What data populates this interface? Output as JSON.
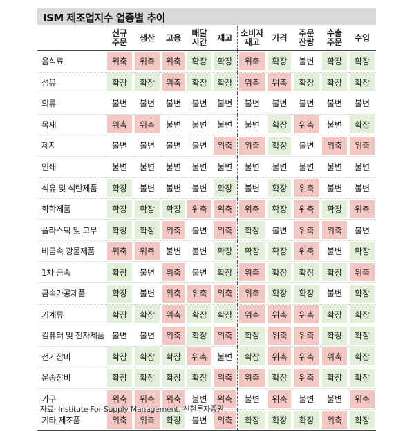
{
  "title": "ISM 제조업지수 업종별 추이",
  "columns": [
    {
      "label": "신규\n주문"
    },
    {
      "label": "생산"
    },
    {
      "label": "고용"
    },
    {
      "label": "배달\n시간"
    },
    {
      "label": "재고"
    },
    {
      "label": "소비자\n재고"
    },
    {
      "label": "가격"
    },
    {
      "label": "주문\n잔량"
    },
    {
      "label": "수출\n주문"
    },
    {
      "label": "수입"
    }
  ],
  "status_colors": {
    "확장": "#e2efd9",
    "위축": "#f4c7c3",
    "불변": "#ffffff"
  },
  "rows": [
    {
      "name": "음식료",
      "values": [
        "위축",
        "위축",
        "위축",
        "확장",
        "확장",
        "위축",
        "확장",
        "불변",
        "확장",
        "확장"
      ]
    },
    {
      "name": "섬유",
      "values": [
        "확장",
        "확장",
        "위축",
        "확장",
        "확장",
        "위축",
        "위축",
        "확장",
        "확장",
        "확장"
      ]
    },
    {
      "name": "의류",
      "values": [
        "불변",
        "불변",
        "불변",
        "불변",
        "불변",
        "불변",
        "불변",
        "불변",
        "불변",
        "불변"
      ]
    },
    {
      "name": "목재",
      "values": [
        "위축",
        "위축",
        "불변",
        "불변",
        "불변",
        "불변",
        "확장",
        "위축",
        "불변",
        "확장"
      ]
    },
    {
      "name": "제지",
      "values": [
        "불변",
        "불변",
        "불변",
        "불변",
        "위축",
        "위축",
        "확장",
        "불변",
        "위축",
        "위축"
      ]
    },
    {
      "name": "인쇄",
      "values": [
        "불변",
        "불변",
        "불변",
        "불변",
        "불변",
        "불변",
        "불변",
        "불변",
        "불변",
        "불변"
      ]
    },
    {
      "name": "석유 및 석탄제품",
      "values": [
        "확장",
        "불변",
        "불변",
        "불변",
        "확장",
        "불변",
        "확장",
        "위축",
        "불변",
        "불변"
      ]
    },
    {
      "name": "화학제품",
      "values": [
        "확장",
        "확장",
        "확장",
        "위축",
        "위축",
        "위축",
        "확장",
        "위축",
        "확장",
        "위축"
      ]
    },
    {
      "name": "플라스틱 및 고무",
      "values": [
        "확장",
        "확장",
        "위축",
        "불변",
        "위축",
        "확장",
        "불변",
        "위축",
        "위축",
        "불변"
      ]
    },
    {
      "name": "비금속 광물제품",
      "values": [
        "위축",
        "위축",
        "불변",
        "불변",
        "확장",
        "확장",
        "확장",
        "위축",
        "불변",
        "확장"
      ]
    },
    {
      "name": "1차 금속",
      "values": [
        "확장",
        "불변",
        "위축",
        "불변",
        "확장",
        "위축",
        "확장",
        "확장",
        "확장",
        "위축"
      ]
    },
    {
      "name": "금속가공제품",
      "values": [
        "확장",
        "불변",
        "위축",
        "위축",
        "위축",
        "위축",
        "확장",
        "확장",
        "불변",
        "확장"
      ]
    },
    {
      "name": "기계류",
      "values": [
        "확장",
        "확장",
        "위축",
        "확장",
        "확장",
        "위축",
        "위축",
        "위축",
        "확장",
        "확장"
      ]
    },
    {
      "name": "컴퓨터 및 전자제품",
      "values": [
        "불변",
        "불변",
        "위축",
        "확장",
        "위축",
        "확장",
        "위축",
        "위축",
        "확장",
        "확장"
      ]
    },
    {
      "name": "전기장비",
      "values": [
        "확장",
        "확장",
        "확장",
        "위축",
        "불변",
        "확장",
        "위축",
        "위축",
        "위축",
        "확장"
      ]
    },
    {
      "name": "운송장비",
      "values": [
        "확장",
        "확장",
        "확장",
        "확장",
        "위축",
        "위축",
        "확장",
        "위축",
        "확장",
        "확장"
      ]
    },
    {
      "name": "가구",
      "values": [
        "위축",
        "위축",
        "위축",
        "불변",
        "위축",
        "불변",
        "위축",
        "불변",
        "불변",
        "위축"
      ]
    },
    {
      "name": "기타 제조품",
      "values": [
        "위축",
        "위축",
        "확장",
        "불변",
        "위축",
        "확장",
        "확장",
        "확장",
        "위축",
        "확장"
      ]
    }
  ],
  "footnote": "자료: Institute For Supply Management, 신한투자증권"
}
